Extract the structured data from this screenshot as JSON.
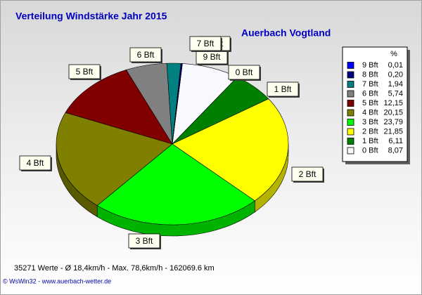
{
  "chart_data": {
    "type": "pie",
    "title": "Verteilung Windstärke  Jahr 2015",
    "subtitle": "Auerbach Vogtland",
    "legend_header": "%",
    "categories": [
      "9 Bft",
      "8 Bft",
      "7 Bft",
      "6 Bft",
      "5 Bft",
      "4 Bft",
      "3 Bft",
      "2 Bft",
      "1 Bft",
      "0 Bft"
    ],
    "values": [
      0.01,
      0.2,
      1.94,
      5.74,
      12.15,
      20.15,
      23.79,
      21.85,
      6.11,
      8.07
    ],
    "value_labels": [
      "0,01",
      "0,20",
      "1,94",
      "5,74",
      "12,15",
      "20,15",
      "23,79",
      "21,85",
      "6,11",
      "8,07"
    ],
    "colors": [
      "#0000ff",
      "#000080",
      "#008080",
      "#808080",
      "#800000",
      "#808000",
      "#00ff00",
      "#ffff00",
      "#008000",
      "#f8f8ff"
    ],
    "legend": "right",
    "notes": [
      "35271 Werte   -   Ø 18,4km/h  -  Max. 78,6km/h  -   162069.6 km",
      "© WsWin32  -  www.auerbach-wetter.de"
    ]
  }
}
